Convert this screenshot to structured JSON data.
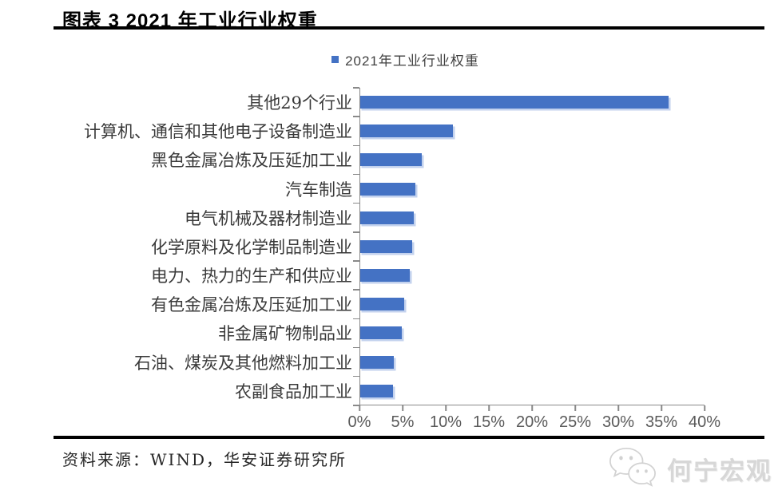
{
  "header": {
    "title": "图表 3 2021 年工业行业权重"
  },
  "chart_data": {
    "type": "bar",
    "orientation": "horizontal",
    "title": "2021年工业行业权重",
    "legend": [
      "2021年工业行业权重"
    ],
    "legend_position": "top-center",
    "grid": false,
    "unit": "%",
    "xlim": [
      0,
      40
    ],
    "x_tick_labels": [
      "0%",
      "5%",
      "10%",
      "15%",
      "20%",
      "25%",
      "30%",
      "35%",
      "40%"
    ],
    "categories": [
      "其他29个行业",
      "计算机、通信和其他电子设备制造业",
      "黑色金属冶炼及压延加工业",
      "汽车制造",
      "电气机械及器材制造业",
      "化学原料及化学制品制造业",
      "电力、热力的生产和供应业",
      "有色金属冶炼及压延加工业",
      "非金属矿物制品业",
      "石油、煤炭及其他燃料加工业",
      "农副食品加工业"
    ],
    "values": [
      35.8,
      10.8,
      7.2,
      6.5,
      6.3,
      6.1,
      5.8,
      5.2,
      4.9,
      4.0,
      3.9
    ],
    "bar_color": "#4472C4",
    "axis_color": "#898989",
    "tick_label_color": "#595959"
  },
  "footer": {
    "source": "资料来源：WIND，华安证券研究所"
  },
  "watermark": {
    "icon": "wechat-icon",
    "text": "何宁宏观"
  }
}
